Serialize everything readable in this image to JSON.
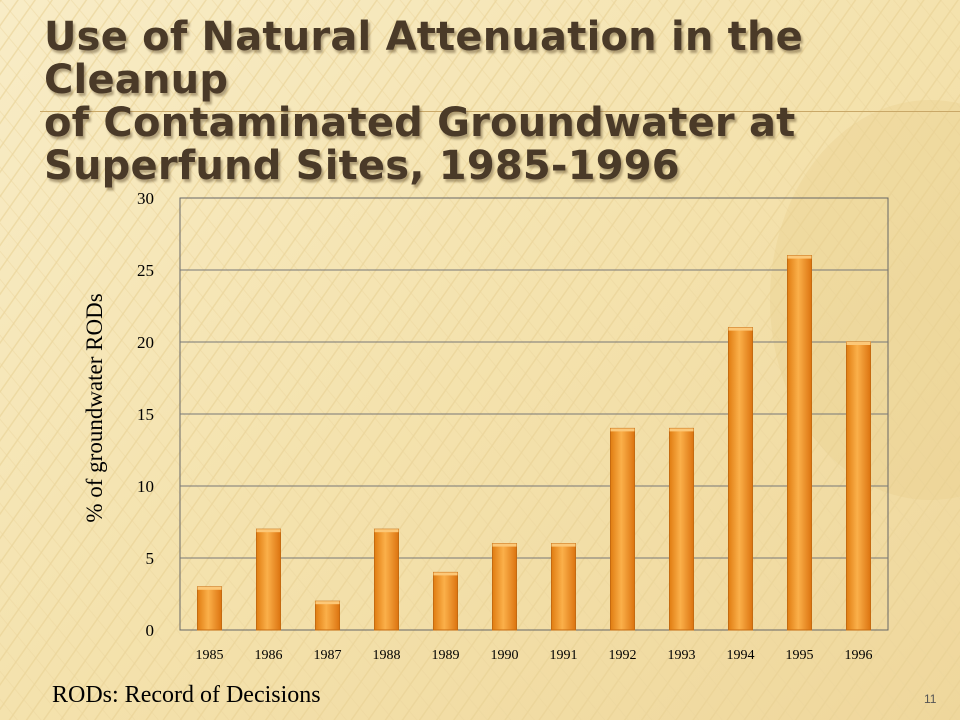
{
  "slide": {
    "title_lines": [
      "Use of Natural Attenuation in the Cleanup",
      "of Contaminated Groundwater at",
      "Superfund Sites, 1985-1996"
    ],
    "footnote": "RODs: Record of Decisions",
    "slide_number": "11"
  },
  "colors": {
    "background": "#f6e7b9",
    "bar_fill": "#f59a26",
    "bar_edge": "#c56a10",
    "title_text": "#4a3a28"
  },
  "chart_data": {
    "type": "bar",
    "title": "",
    "xlabel": "",
    "ylabel": "% of groundwater RODs",
    "categories": [
      "1985",
      "1986",
      "1987",
      "1988",
      "1989",
      "1990",
      "1991",
      "1992",
      "1993",
      "1994",
      "1995",
      "1996"
    ],
    "values": [
      3,
      7,
      2,
      7,
      4,
      6,
      6,
      14,
      14,
      21,
      26,
      20
    ],
    "ylim": [
      0,
      30
    ],
    "yticks": [
      0,
      5,
      10,
      15,
      20,
      25,
      30
    ],
    "grid": true,
    "legend": false
  }
}
